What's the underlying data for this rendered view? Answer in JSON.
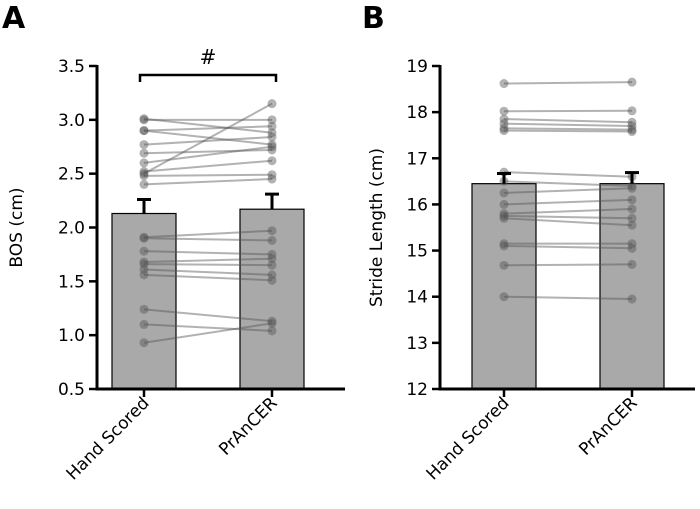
{
  "chart_data": [
    {
      "panel": "A",
      "type": "bar",
      "categories": [
        "Hand Scored",
        "PrAnCER"
      ],
      "values": [
        2.13,
        2.17
      ],
      "errors": [
        0.13,
        0.14
      ],
      "xlabel": "",
      "ylabel": "BOS (cm)",
      "ylim": [
        0.5,
        3.5
      ],
      "yticks": [
        0.5,
        1.0,
        1.5,
        2.0,
        2.5,
        3.0,
        3.5
      ],
      "ytick_labels": [
        "0.5",
        "1.0",
        "1.5",
        "2.0",
        "2.5",
        "3.0",
        "3.5"
      ],
      "significance": {
        "label": "#",
        "between": [
          0,
          1
        ]
      },
      "paired": [
        [
          3.01,
          2.88
        ],
        [
          3.0,
          3.0
        ],
        [
          2.9,
          2.94
        ],
        [
          2.9,
          2.77
        ],
        [
          2.77,
          2.84
        ],
        [
          2.69,
          2.72
        ],
        [
          2.6,
          2.75
        ],
        [
          2.52,
          2.62
        ],
        [
          2.5,
          3.15
        ],
        [
          2.48,
          2.49
        ],
        [
          2.4,
          2.45
        ],
        [
          1.91,
          1.97
        ],
        [
          1.9,
          1.88
        ],
        [
          1.78,
          1.75
        ],
        [
          1.68,
          1.71
        ],
        [
          1.66,
          1.65
        ],
        [
          1.61,
          1.56
        ],
        [
          1.56,
          1.51
        ],
        [
          1.24,
          1.13
        ],
        [
          1.1,
          1.04
        ],
        [
          0.93,
          1.11
        ]
      ]
    },
    {
      "panel": "B",
      "type": "bar",
      "categories": [
        "Hand Scored",
        "PrAnCER"
      ],
      "values": [
        16.45,
        16.45
      ],
      "errors": [
        0.22,
        0.24
      ],
      "xlabel": "",
      "ylabel": "Stride Length (cm)",
      "ylim": [
        12,
        19
      ],
      "yticks": [
        12,
        13,
        14,
        15,
        16,
        17,
        18,
        19
      ],
      "ytick_labels": [
        "12",
        "13",
        "14",
        "15",
        "16",
        "17",
        "18",
        "19"
      ],
      "paired": [
        [
          18.62,
          18.65
        ],
        [
          18.02,
          18.03
        ],
        [
          17.85,
          17.78
        ],
        [
          17.75,
          17.7
        ],
        [
          17.65,
          17.62
        ],
        [
          17.6,
          17.58
        ],
        [
          16.7,
          16.6
        ],
        [
          16.5,
          16.4
        ],
        [
          16.25,
          16.35
        ],
        [
          16.0,
          16.1
        ],
        [
          15.8,
          15.9
        ],
        [
          15.75,
          15.7
        ],
        [
          15.7,
          15.55
        ],
        [
          15.15,
          15.15
        ],
        [
          15.1,
          15.05
        ],
        [
          14.68,
          14.7
        ],
        [
          14.0,
          13.95
        ]
      ]
    }
  ]
}
